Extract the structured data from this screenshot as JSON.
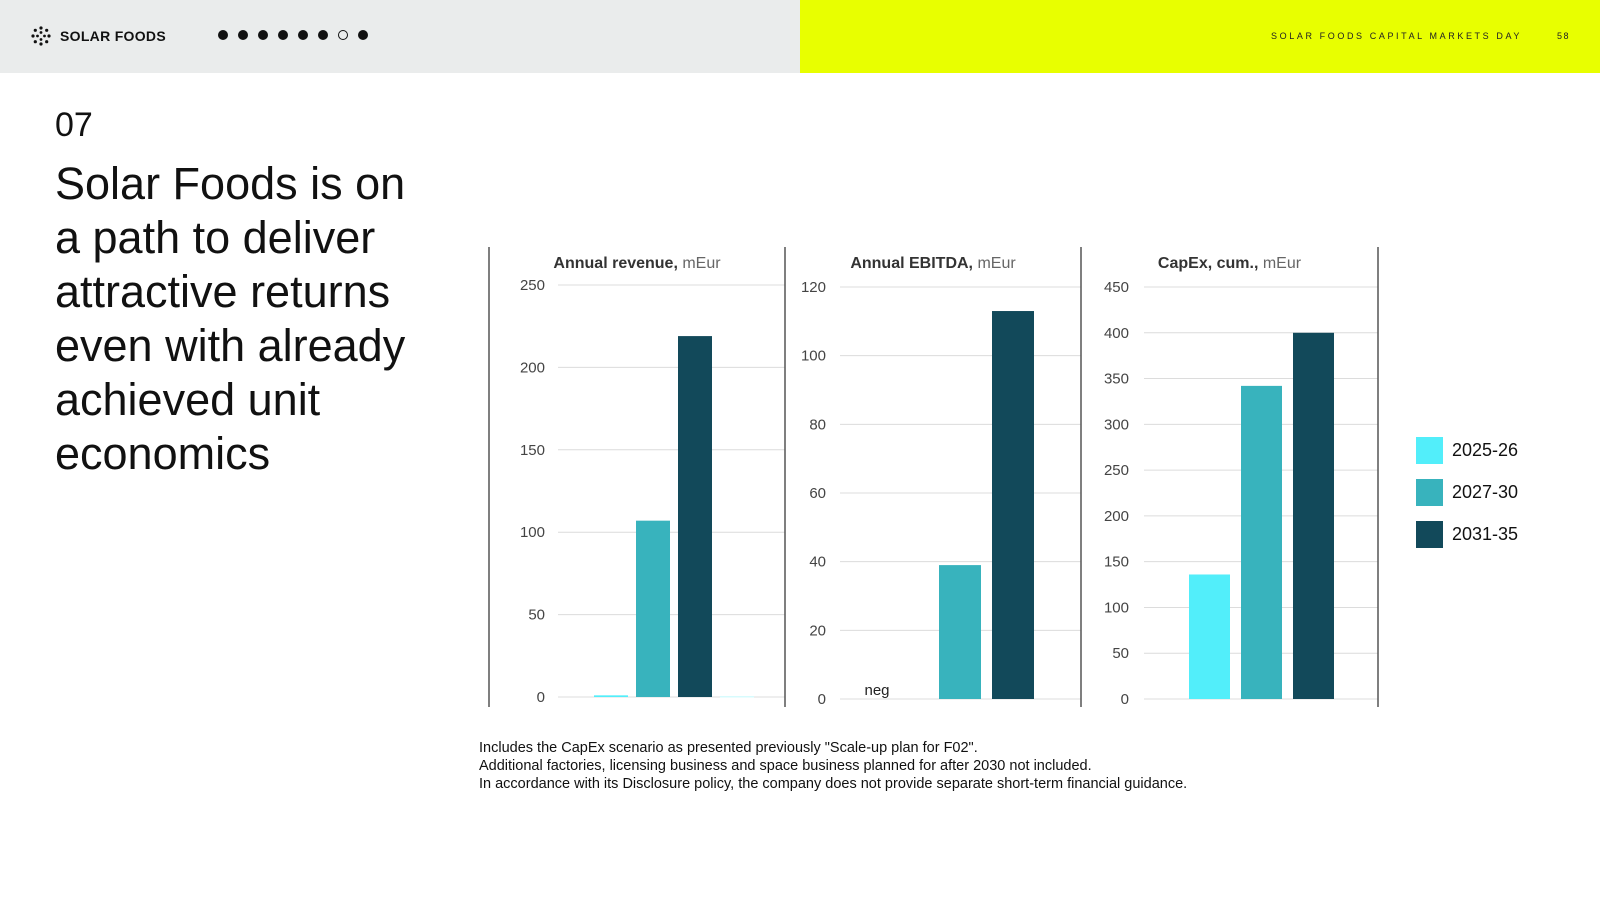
{
  "header": {
    "logo_text": "SOLAR FOODS",
    "progress_dots": [
      {
        "state": "filled"
      },
      {
        "state": "filled"
      },
      {
        "state": "filled"
      },
      {
        "state": "filled"
      },
      {
        "state": "filled"
      },
      {
        "state": "filled"
      },
      {
        "state": "hollow"
      },
      {
        "state": "filled"
      }
    ],
    "caption": "SOLAR FOODS CAPITAL MARKETS DAY",
    "page_number": "58"
  },
  "section_number": "07",
  "headline": "Solar Foods is on a path to deliver attractive returns even with already achieved unit economics",
  "colors": {
    "header_left_bg": "#eaecec",
    "header_right_bg": "#e8ff00",
    "series_2025_26": "#52eefa",
    "series_2027_30": "#38b3bd",
    "series_2031_35": "#12495a"
  },
  "legend": [
    {
      "label": "2025-26",
      "color": "#52eefa"
    },
    {
      "label": "2027-30",
      "color": "#38b3bd"
    },
    {
      "label": "2031-35",
      "color": "#12495a"
    }
  ],
  "chart_data": [
    {
      "type": "bar",
      "title": "Annual revenue,",
      "title_unit": "mEur",
      "ylim": [
        0,
        250
      ],
      "yticks": [
        0,
        50,
        100,
        150,
        200,
        250
      ],
      "grid": true,
      "categories": [
        "2025-26",
        "2027-30",
        "2031-35"
      ],
      "values": [
        1,
        107,
        219
      ]
    },
    {
      "type": "bar",
      "title": "Annual EBITDA,",
      "title_unit": "mEur",
      "ylim": [
        0,
        120
      ],
      "yticks": [
        0,
        20,
        40,
        60,
        80,
        100,
        120
      ],
      "grid": true,
      "categories": [
        "2025-26",
        "2027-30",
        "2031-35"
      ],
      "values": [
        null,
        39,
        113
      ],
      "annotations": [
        {
          "category": "2025-26",
          "text": "neg"
        }
      ]
    },
    {
      "type": "bar",
      "title": "CapEx, cum.,",
      "title_unit": "mEur",
      "ylim": [
        0,
        450
      ],
      "yticks": [
        0,
        50,
        100,
        150,
        200,
        250,
        300,
        350,
        400,
        450
      ],
      "grid": true,
      "categories": [
        "2025-26",
        "2027-30",
        "2031-35"
      ],
      "values": [
        136,
        342,
        400
      ]
    }
  ],
  "footnotes": [
    "Includes the CapEx scenario as presented previously \"Scale-up plan for F02\".",
    "Additional factories, licensing business and space business planned for after 2030 not included.",
    "In accordance with its Disclosure policy, the company does not provide separate short-term financial guidance."
  ]
}
